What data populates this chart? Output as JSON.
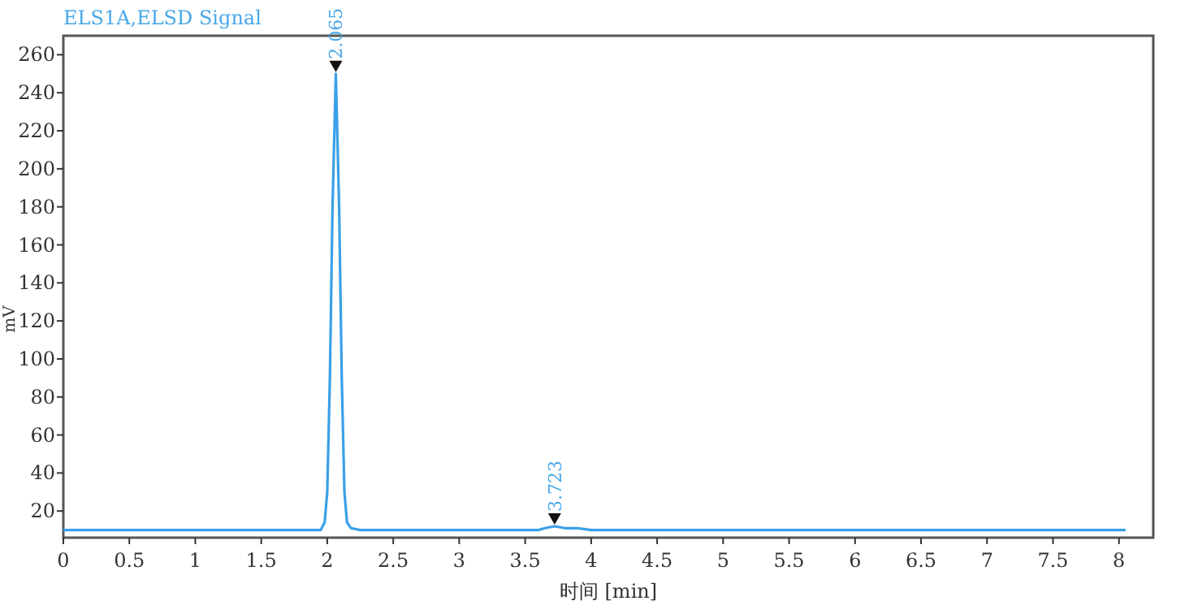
{
  "chart_data": {
    "type": "line",
    "title": "ELS1A,ELSD Signal",
    "xlabel": "时间 [min]",
    "ylabel": "mV",
    "xlim": [
      0,
      8.26
    ],
    "ylim": [
      6,
      270
    ],
    "xticks": [
      0,
      0.5,
      1,
      1.5,
      2,
      2.5,
      3,
      3.5,
      4,
      4.5,
      5,
      5.5,
      6,
      6.5,
      7,
      7.5,
      8
    ],
    "yticks": [
      20,
      40,
      60,
      80,
      100,
      120,
      140,
      160,
      180,
      200,
      220,
      240,
      260
    ],
    "grid": false,
    "marker": "none",
    "line_style": "solid",
    "annotations": [
      {
        "text": "2.065",
        "x": 2.065,
        "y": 250
      },
      {
        "text": "3.723",
        "x": 3.723,
        "y": 12
      }
    ],
    "series": [
      {
        "color": "#3aa0e8",
        "x": [
          0,
          0.5,
          1,
          1.5,
          1.9,
          1.95,
          1.98,
          2.0,
          2.02,
          2.04,
          2.065,
          2.09,
          2.11,
          2.13,
          2.15,
          2.18,
          2.25,
          2.5,
          3,
          3.5,
          3.6,
          3.65,
          3.723,
          3.8,
          3.9,
          4.0,
          4.5,
          5,
          5.5,
          5.9,
          6.3,
          7,
          7.5,
          8.05
        ],
        "values": [
          10,
          10,
          10,
          10,
          10,
          10,
          14,
          30,
          90,
          180,
          250,
          180,
          90,
          30,
          14,
          11,
          10,
          10,
          10,
          10,
          10,
          11,
          12,
          11,
          11,
          10,
          10,
          10,
          10,
          10,
          10,
          10,
          10,
          10
        ]
      }
    ]
  }
}
